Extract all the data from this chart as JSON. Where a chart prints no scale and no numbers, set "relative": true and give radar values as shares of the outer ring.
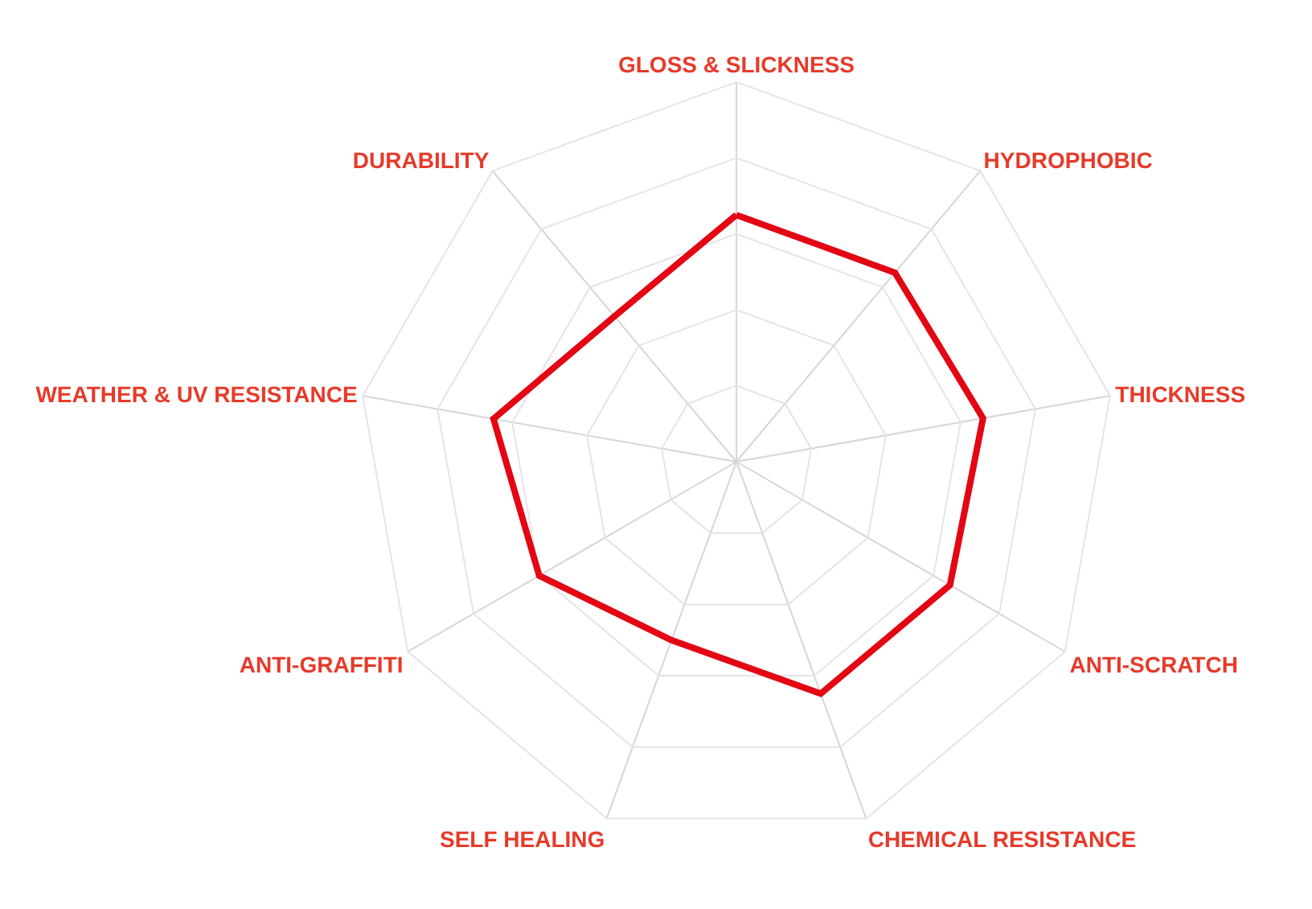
{
  "chart_data": {
    "type": "radar",
    "relative": true,
    "categories": [
      "GLOSS & SLICKNESS",
      "HYDROPHOBIC",
      "THICKNESS",
      "ANTI-SCRATCH",
      "CHEMICAL RESISTANCE",
      "SELF HEALING",
      "ANTI-GRAFFITI",
      "WEATHER & UV RESISTANCE",
      "DURABILITY"
    ],
    "series": [
      {
        "color": "#e30613",
        "values": [
          0.65,
          0.65,
          0.66,
          0.65,
          0.65,
          0.5,
          0.6,
          0.65,
          0.5
        ]
      }
    ],
    "grid": true,
    "marker": "none",
    "line_style": "solid"
  }
}
